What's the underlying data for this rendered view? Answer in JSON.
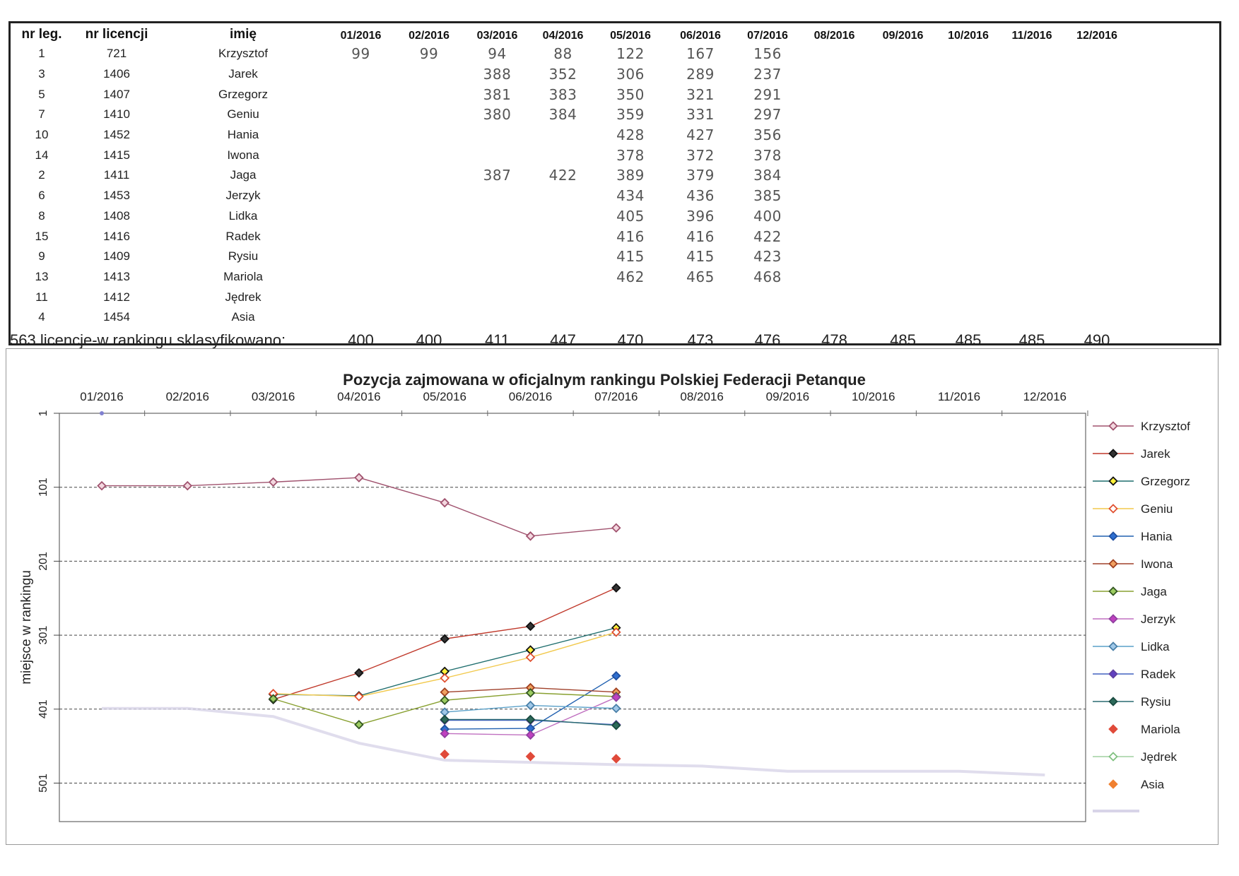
{
  "table": {
    "headers": {
      "leg": "nr leg.",
      "lic": "nr licencji",
      "name": "imię"
    },
    "months": [
      "01/2016",
      "02/2016",
      "03/2016",
      "04/2016",
      "05/2016",
      "06/2016",
      "07/2016",
      "08/2016",
      "09/2016",
      "10/2016",
      "11/2016",
      "12/2016"
    ],
    "rows": [
      {
        "leg": "1",
        "lic": "721",
        "name": "Krzysztof",
        "vals": [
          "99",
          "99",
          "94",
          "88",
          "122",
          "167",
          "156",
          "",
          "",
          "",
          "",
          ""
        ]
      },
      {
        "leg": "3",
        "lic": "1406",
        "name": "Jarek",
        "vals": [
          "",
          "",
          "388",
          "352",
          "306",
          "289",
          "237",
          "",
          "",
          "",
          "",
          ""
        ]
      },
      {
        "leg": "5",
        "lic": "1407",
        "name": "Grzegorz",
        "vals": [
          "",
          "",
          "381",
          "383",
          "350",
          "321",
          "291",
          "",
          "",
          "",
          "",
          ""
        ]
      },
      {
        "leg": "7",
        "lic": "1410",
        "name": "Geniu",
        "vals": [
          "",
          "",
          "380",
          "384",
          "359",
          "331",
          "297",
          "",
          "",
          "",
          "",
          ""
        ]
      },
      {
        "leg": "10",
        "lic": "1452",
        "name": "Hania",
        "vals": [
          "",
          "",
          "",
          "",
          "428",
          "427",
          "356",
          "",
          "",
          "",
          "",
          ""
        ]
      },
      {
        "leg": "14",
        "lic": "1415",
        "name": "Iwona",
        "vals": [
          "",
          "",
          "",
          "",
          "378",
          "372",
          "378",
          "",
          "",
          "",
          "",
          ""
        ]
      },
      {
        "leg": "2",
        "lic": "1411",
        "name": "Jaga",
        "vals": [
          "",
          "",
          "387",
          "422",
          "389",
          "379",
          "384",
          "",
          "",
          "",
          "",
          ""
        ]
      },
      {
        "leg": "6",
        "lic": "1453",
        "name": "Jerzyk",
        "vals": [
          "",
          "",
          "",
          "",
          "434",
          "436",
          "385",
          "",
          "",
          "",
          "",
          ""
        ]
      },
      {
        "leg": "8",
        "lic": "1408",
        "name": "Lidka",
        "vals": [
          "",
          "",
          "",
          "",
          "405",
          "396",
          "400",
          "",
          "",
          "",
          "",
          ""
        ]
      },
      {
        "leg": "15",
        "lic": "1416",
        "name": "Radek",
        "vals": [
          "",
          "",
          "",
          "",
          "416",
          "416",
          "422",
          "",
          "",
          "",
          "",
          ""
        ]
      },
      {
        "leg": "9",
        "lic": "1409",
        "name": "Rysiu",
        "vals": [
          "",
          "",
          "",
          "",
          "415",
          "415",
          "423",
          "",
          "",
          "",
          "",
          ""
        ]
      },
      {
        "leg": "13",
        "lic": "1413",
        "name": "Mariola",
        "vals": [
          "",
          "",
          "",
          "",
          "462",
          "465",
          "468",
          "",
          "",
          "",
          "",
          ""
        ]
      },
      {
        "leg": "11",
        "lic": "1412",
        "name": "Jędrek",
        "vals": [
          "",
          "",
          "",
          "",
          "",
          "",
          "",
          "",
          "",
          "",
          "",
          ""
        ]
      },
      {
        "leg": "4",
        "lic": "1454",
        "name": "Asia",
        "vals": [
          "",
          "",
          "",
          "",
          "",
          "",
          "",
          "",
          "",
          "",
          "",
          ""
        ]
      }
    ],
    "footer_label": "563 licencje-w rankingu sklasyfikowano:",
    "footer_vals": [
      "400",
      "400",
      "411",
      "447",
      "470",
      "473",
      "476",
      "478",
      "485",
      "485",
      "485",
      "490"
    ]
  },
  "chart_data": {
    "type": "line",
    "title": "Pozycja zajmowana w oficjalnym rankingu Polskiej Federacji Petanque",
    "ylabel": "miejsce w rankingu",
    "xlabel": "",
    "categories": [
      "01/2016",
      "02/2016",
      "03/2016",
      "04/2016",
      "05/2016",
      "06/2016",
      "07/2016",
      "08/2016",
      "09/2016",
      "10/2016",
      "11/2016",
      "12/2016"
    ],
    "y_ticks": [
      1,
      101,
      201,
      301,
      401,
      501
    ],
    "ylim": [
      1,
      551
    ],
    "y_inverted": true,
    "grid": "horizontal dashed",
    "legend_position": "right",
    "series": [
      {
        "name": "Krzysztof",
        "color": "#a0526e",
        "marker": "diamond-open",
        "values": [
          99,
          99,
          94,
          88,
          122,
          167,
          156,
          null,
          null,
          null,
          null,
          null
        ]
      },
      {
        "name": "Jarek",
        "color": "#c0392b",
        "marker": "diamond-filled-dark",
        "values": [
          null,
          null,
          388,
          352,
          306,
          289,
          237,
          null,
          null,
          null,
          null,
          null
        ]
      },
      {
        "name": "Grzegorz",
        "color": "#1f6e6e",
        "marker": "diamond-yellow",
        "values": [
          null,
          null,
          381,
          383,
          350,
          321,
          291,
          null,
          null,
          null,
          null,
          null
        ]
      },
      {
        "name": "Geniu",
        "color": "#f2c94c",
        "marker": "diamond-open-red",
        "values": [
          null,
          null,
          380,
          384,
          359,
          331,
          297,
          null,
          null,
          null,
          null,
          null
        ]
      },
      {
        "name": "Hania",
        "color": "#2060b0",
        "marker": "diamond-blue",
        "values": [
          null,
          null,
          null,
          null,
          428,
          427,
          356,
          null,
          null,
          null,
          null,
          null
        ]
      },
      {
        "name": "Iwona",
        "color": "#a0402a",
        "marker": "diamond-orange",
        "values": [
          null,
          null,
          null,
          null,
          378,
          372,
          378,
          null,
          null,
          null,
          null,
          null
        ]
      },
      {
        "name": "Jaga",
        "color": "#88a030",
        "marker": "diamond-green",
        "values": [
          null,
          null,
          387,
          422,
          389,
          379,
          384,
          null,
          null,
          null,
          null,
          null
        ]
      },
      {
        "name": "Jerzyk",
        "color": "#c070c0",
        "marker": "diamond-purple",
        "values": [
          null,
          null,
          null,
          null,
          434,
          436,
          385,
          null,
          null,
          null,
          null,
          null
        ]
      },
      {
        "name": "Lidka",
        "color": "#5aa0c8",
        "marker": "diamond-lightblue",
        "values": [
          null,
          null,
          null,
          null,
          405,
          396,
          400,
          null,
          null,
          null,
          null,
          null
        ]
      },
      {
        "name": "Radek",
        "color": "#4060c0",
        "marker": "diamond-violet",
        "values": [
          null,
          null,
          null,
          null,
          416,
          416,
          422,
          null,
          null,
          null,
          null,
          null
        ]
      },
      {
        "name": "Rysiu",
        "color": "#2a6a70",
        "marker": "diamond-teal",
        "values": [
          null,
          null,
          null,
          null,
          415,
          415,
          423,
          null,
          null,
          null,
          null,
          null
        ]
      },
      {
        "name": "Mariola",
        "color": "#e04a3a",
        "marker": "diamond-red-only",
        "values": [
          null,
          null,
          null,
          null,
          462,
          465,
          468,
          null,
          null,
          null,
          null,
          null
        ]
      },
      {
        "name": "Jędrek",
        "color": "#a0d0a0",
        "marker": "diamond-open-green",
        "values": [
          null,
          null,
          null,
          null,
          null,
          null,
          null,
          null,
          null,
          null,
          null,
          null
        ]
      },
      {
        "name": "Asia",
        "color": "#f08030",
        "marker": "diamond-orange-only",
        "values": [
          null,
          null,
          null,
          null,
          null,
          null,
          null,
          null,
          null,
          null,
          null,
          null
        ]
      }
    ],
    "total_line": {
      "color": "#d8d4e8",
      "values": [
        400,
        400,
        411,
        447,
        470,
        473,
        476,
        478,
        485,
        485,
        485,
        490
      ]
    }
  }
}
